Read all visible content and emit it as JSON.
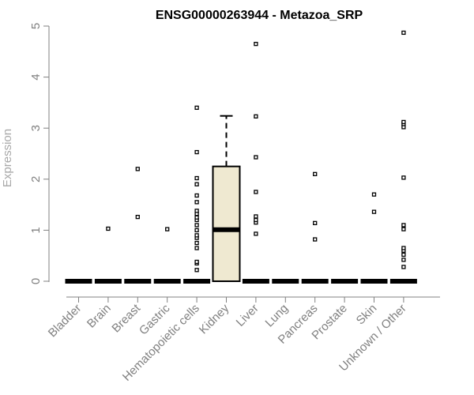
{
  "chart_data": {
    "type": "box",
    "title": "ENSG00000263944 - Metazoa_SRP",
    "xlabel": "",
    "ylabel": "Expression",
    "ylim": [
      0,
      5
    ],
    "yticks": [
      "0",
      "1",
      "2",
      "3",
      "4",
      "5"
    ],
    "categories": [
      "Bladder",
      "Brain",
      "Breast",
      "Gastric",
      "Hematopoietic cells",
      "Kidney",
      "Liver",
      "Lung",
      "Pancreas",
      "Prostate",
      "Skin",
      "Unknown / Other"
    ],
    "boxes": [
      {
        "q1": 0,
        "median": 0,
        "q3": 0,
        "whisker_low": 0,
        "whisker_high": 0,
        "outliers": []
      },
      {
        "q1": 0,
        "median": 0,
        "q3": 0,
        "whisker_low": 0,
        "whisker_high": 0,
        "outliers": [
          1.03
        ]
      },
      {
        "q1": 0,
        "median": 0,
        "q3": 0,
        "whisker_low": 0,
        "whisker_high": 0,
        "outliers": [
          1.26,
          2.2
        ]
      },
      {
        "q1": 0,
        "median": 0,
        "q3": 0,
        "whisker_low": 0,
        "whisker_high": 0,
        "outliers": [
          1.02
        ]
      },
      {
        "q1": 0,
        "median": 0,
        "q3": 0,
        "whisker_low": 0,
        "whisker_high": 0,
        "outliers": [
          0.22,
          0.35,
          0.38,
          0.65,
          0.75,
          0.85,
          0.9,
          1.0,
          1.1,
          1.2,
          1.25,
          1.32,
          1.38,
          1.55,
          1.68,
          1.9,
          2.02,
          2.53,
          3.4
        ]
      },
      {
        "q1": 0,
        "median": 1.01,
        "q3": 2.25,
        "whisker_low": 0,
        "whisker_high": 3.24,
        "outliers": []
      },
      {
        "q1": 0,
        "median": 0,
        "q3": 0,
        "whisker_low": 0,
        "whisker_high": 0,
        "outliers": [
          0.93,
          1.15,
          1.2,
          1.27,
          1.75,
          2.43,
          3.23,
          4.65
        ]
      },
      {
        "q1": 0,
        "median": 0,
        "q3": 0,
        "whisker_low": 0,
        "whisker_high": 0,
        "outliers": []
      },
      {
        "q1": 0,
        "median": 0,
        "q3": 0,
        "whisker_low": 0,
        "whisker_high": 0,
        "outliers": [
          0.82,
          1.14,
          2.1
        ]
      },
      {
        "q1": 0,
        "median": 0,
        "q3": 0,
        "whisker_low": 0,
        "whisker_high": 0,
        "outliers": []
      },
      {
        "q1": 0,
        "median": 0,
        "q3": 0,
        "whisker_low": 0,
        "whisker_high": 0,
        "outliers": [
          1.36,
          1.7
        ]
      },
      {
        "q1": 0,
        "median": 0,
        "q3": 0,
        "whisker_low": 0,
        "whisker_high": 0,
        "outliers": [
          0.28,
          0.42,
          0.52,
          0.6,
          0.65,
          1.02,
          1.1,
          2.03,
          3.02,
          3.08,
          3.12,
          4.87
        ]
      }
    ],
    "box_fill": "#efe9d1",
    "grid": false,
    "legend": "none"
  }
}
